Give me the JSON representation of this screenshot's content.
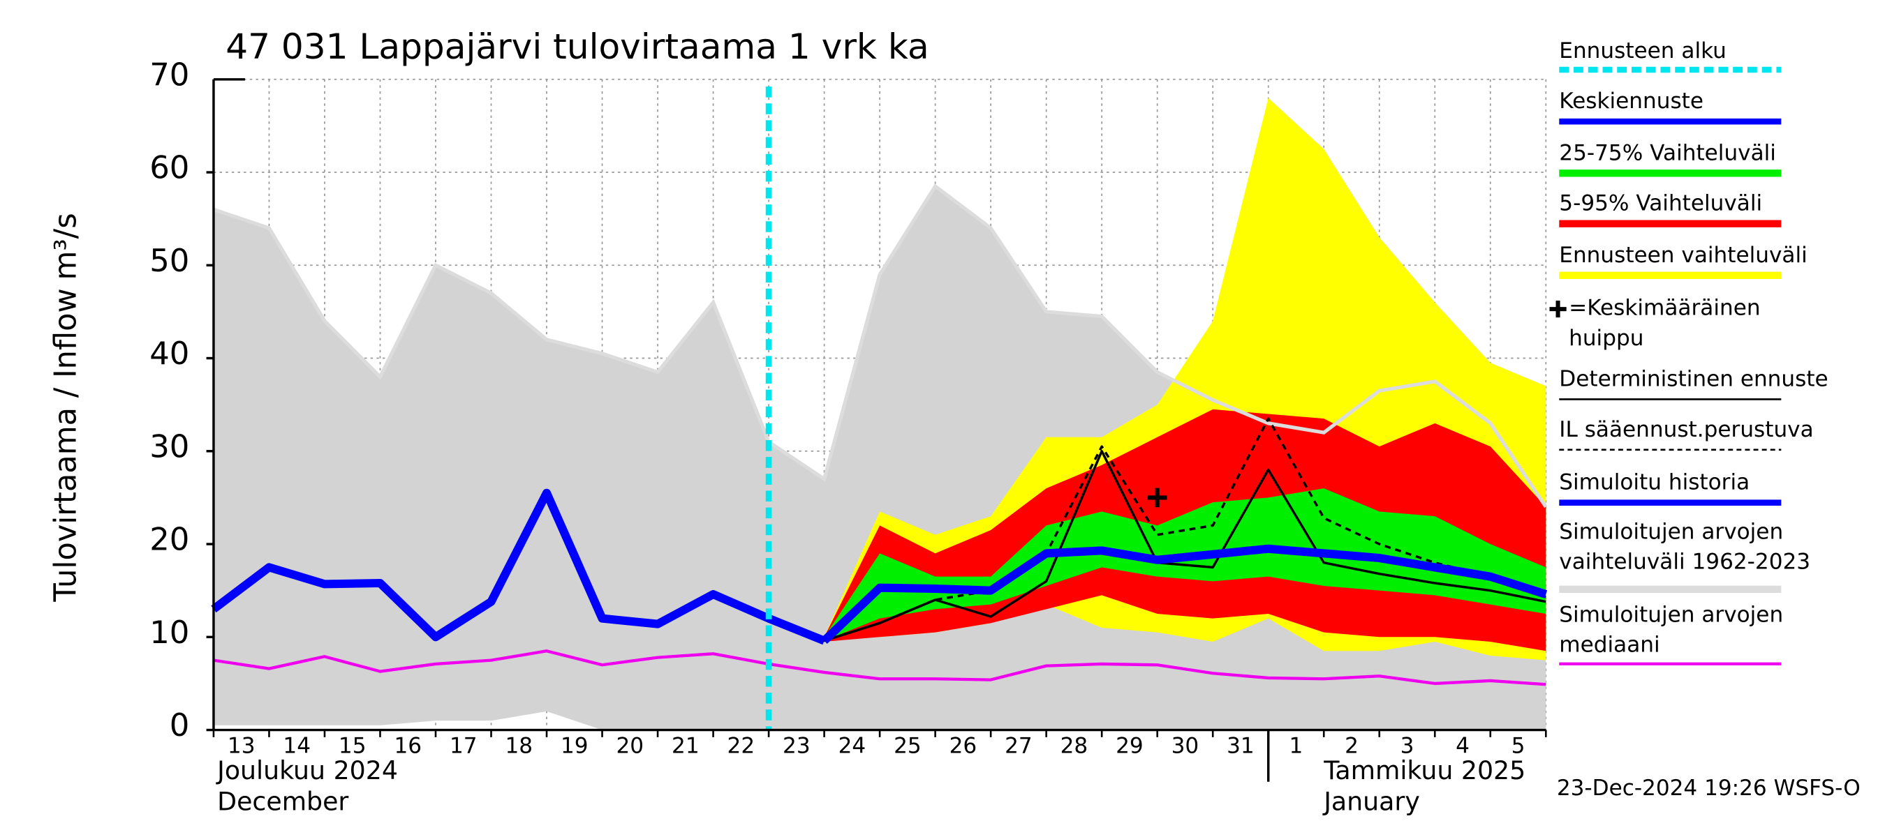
{
  "chart_data": {
    "type": "line",
    "title": "47 031 Lappajärvi tulovirtaama 1 vrk ka",
    "y_label": "Tulovirtaama / Inflow",
    "y_unit": "m³/s",
    "months": [
      {
        "category": "13",
        "label": "Joulukuu  2024",
        "label_en": "December"
      },
      {
        "category": "1",
        "label": "Tammikuu  2025",
        "label_en": "January"
      }
    ],
    "footer": "23-Dec-2024 19:26 WSFS-O",
    "categories": [
      "13",
      "14",
      "15",
      "16",
      "17",
      "18",
      "19",
      "20",
      "21",
      "22",
      "23",
      "24",
      "25",
      "26",
      "27",
      "28",
      "29",
      "30",
      "31",
      "1",
      "2",
      "3",
      "4",
      "5",
      null
    ],
    "ylim": [
      0,
      70
    ],
    "yticks": [
      0,
      10,
      20,
      30,
      40,
      50,
      60,
      70
    ],
    "grid": true,
    "series": [
      {
        "name": "Ennusteen alku",
        "color": "#00e5ee",
        "kind": "vline",
        "category": "23"
      },
      {
        "name": "Keskiennuste",
        "color": "#0000ff",
        "kind": "thick",
        "values": [
          null,
          null,
          null,
          null,
          null,
          null,
          null,
          null,
          null,
          null,
          null,
          9.6,
          15.3,
          15.2,
          15.0,
          19,
          19.3,
          18.3,
          18.9,
          19.5,
          19.0,
          18.5,
          17.5,
          16.5,
          14.6
        ]
      },
      {
        "name": "25-75% Vaihteluväli",
        "color": "#00ee00",
        "kind": "band",
        "upper": [
          null,
          null,
          null,
          null,
          null,
          null,
          null,
          null,
          null,
          null,
          null,
          10,
          19,
          16.5,
          16.5,
          22,
          23.5,
          22,
          24.5,
          25,
          26,
          23.5,
          23,
          20,
          17.5
        ],
        "lower": [
          null,
          null,
          null,
          null,
          null,
          null,
          null,
          null,
          null,
          null,
          null,
          9.6,
          12,
          13,
          13.5,
          15.5,
          17.5,
          16.5,
          16,
          16.5,
          15.5,
          15,
          14.5,
          13.5,
          12.5
        ]
      },
      {
        "name": "5-95% Vaihteluväli",
        "color": "#ff0000",
        "kind": "band",
        "upper": [
          null,
          null,
          null,
          null,
          null,
          null,
          null,
          null,
          null,
          null,
          null,
          10,
          22,
          19,
          21.5,
          26,
          28.5,
          31.5,
          34.5,
          34,
          33.5,
          30.5,
          33,
          30.5,
          24
        ],
        "lower": [
          null,
          null,
          null,
          null,
          null,
          null,
          null,
          null,
          null,
          null,
          null,
          9.5,
          10,
          10.5,
          11.5,
          13,
          14.5,
          12.5,
          12,
          12.5,
          10.5,
          10,
          10,
          9.5,
          8.5
        ]
      },
      {
        "name": "Ennusteen vaihteluväli",
        "color": "#ffff00",
        "kind": "band",
        "upper": [
          null,
          null,
          null,
          null,
          null,
          null,
          null,
          null,
          null,
          null,
          null,
          10,
          23.5,
          21,
          23,
          31.5,
          31.5,
          35,
          44,
          68,
          62.5,
          53,
          46,
          39.5,
          37
        ],
        "lower": [
          null,
          null,
          null,
          null,
          null,
          null,
          null,
          null,
          null,
          null,
          null,
          10,
          10,
          10.5,
          11.5,
          13.5,
          11,
          10.5,
          9.5,
          12,
          8.5,
          8.5,
          9.5,
          8,
          7.5
        ]
      },
      {
        "name": "=Keskimääräinen huippu",
        "color": "#000000",
        "kind": "point",
        "category": "30",
        "value": 25
      },
      {
        "name": "Deterministinen ennuste",
        "color": "#000000",
        "kind": "thin",
        "values": [
          null,
          null,
          null,
          null,
          null,
          null,
          null,
          null,
          null,
          14.6,
          12,
          9.6,
          11.5,
          14,
          12.2,
          16,
          30,
          18,
          17.5,
          28,
          18,
          16.8,
          15.8,
          15,
          13.8
        ]
      },
      {
        "name": "IL sääennust.perustuva",
        "color": "#000000",
        "kind": "dashed",
        "values": [
          null,
          null,
          null,
          null,
          null,
          null,
          null,
          null,
          null,
          null,
          null,
          9.6,
          11.5,
          14,
          15,
          19,
          30.5,
          21,
          22,
          33.5,
          22.8,
          20,
          18,
          16.5,
          14.3
        ]
      },
      {
        "name": "Simuloitu historia",
        "color": "#0000ff",
        "kind": "thick",
        "values": [
          13,
          17.5,
          15.7,
          15.8,
          10,
          13.8,
          25.5,
          12,
          11.4,
          14.6,
          12,
          9.6,
          null,
          null,
          null,
          null,
          null,
          null,
          null,
          null,
          null,
          null,
          null,
          null,
          null
        ]
      },
      {
        "name": "Simuloitujen arvojen vaihteluväli 1962-2023",
        "color": "#d3d3d3",
        "kind": "band",
        "upper": [
          56,
          54,
          44,
          38,
          50,
          47,
          42,
          40.5,
          38.5,
          46,
          31,
          27,
          49,
          58.5,
          54,
          45,
          44.5,
          38.5,
          35.5,
          33,
          32,
          36.5,
          37.5,
          33,
          24
        ],
        "lower": [
          0.5,
          0.5,
          0.5,
          0.5,
          1,
          1,
          2,
          0,
          0,
          0,
          0,
          0,
          0,
          0,
          0,
          0,
          0,
          0,
          0,
          0,
          0,
          0,
          0,
          0,
          0
        ]
      },
      {
        "name": "Simuloitujen arvojen mediaani",
        "color": "#ee00ee",
        "kind": "median",
        "values": [
          7.5,
          6.6,
          7.9,
          6.3,
          7.1,
          7.5,
          8.5,
          7.0,
          7.8,
          8.2,
          7.1,
          6.2,
          5.5,
          5.5,
          5.4,
          6.9,
          7.1,
          7.0,
          6.1,
          5.6,
          5.5,
          5.8,
          5.0,
          5.3,
          4.9
        ]
      }
    ]
  }
}
